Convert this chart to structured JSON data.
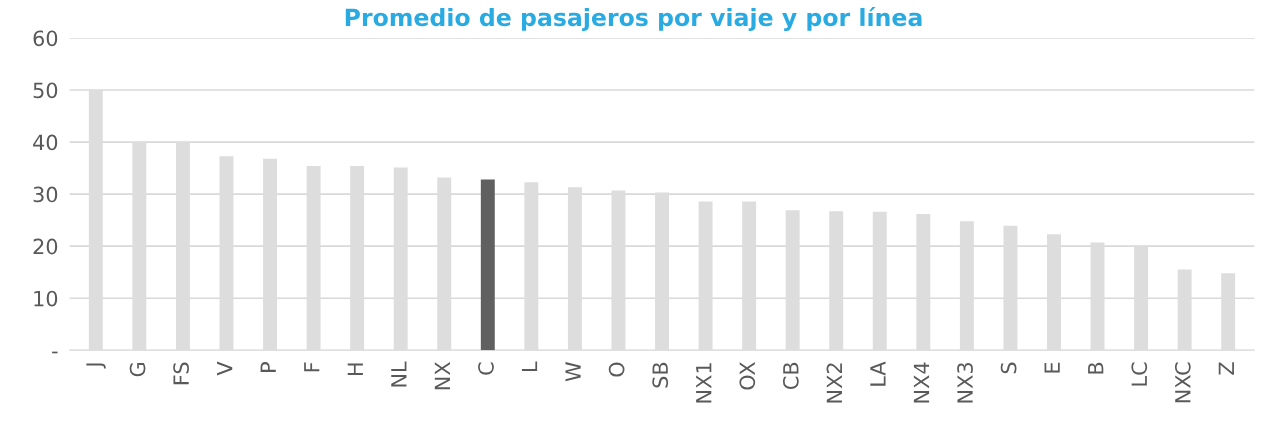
{
  "chart_data": {
    "type": "bar",
    "title": "Promedio de pasajeros por viaje y por línea",
    "categories": [
      "J",
      "G",
      "FS",
      "V",
      "P",
      "F",
      "H",
      "NL",
      "NX",
      "C",
      "L",
      "W",
      "O",
      "SB",
      "NX1",
      "OX",
      "CB",
      "NX2",
      "LA",
      "NX4",
      "NX3",
      "S",
      "E",
      "B",
      "LC",
      "NXC",
      "Z"
    ],
    "values": [
      50,
      40,
      40,
      37.3,
      36.8,
      35.4,
      35.4,
      35.1,
      33.2,
      32.8,
      32.3,
      31.3,
      30.7,
      30.3,
      28.6,
      28.6,
      26.9,
      26.7,
      26.6,
      26.2,
      24.8,
      23.9,
      22.3,
      20.7,
      20.0,
      15.5,
      14.8
    ],
    "colors": [
      "#dddddd",
      "#dddddd",
      "#dddddd",
      "#dddddd",
      "#dddddd",
      "#dddddd",
      "#dddddd",
      "#dddddd",
      "#dddddd",
      "#606060",
      "#dddddd",
      "#dddddd",
      "#dddddd",
      "#dddddd",
      "#dddddd",
      "#dddddd",
      "#dddddd",
      "#dddddd",
      "#dddddd",
      "#dddddd",
      "#dddddd",
      "#dddddd",
      "#dddddd",
      "#dddddd",
      "#dddddd",
      "#dddddd",
      "#dddddd"
    ],
    "ylim": [
      0,
      60
    ],
    "yticks": [
      {
        "value": 0,
        "label": "-"
      },
      10,
      20,
      30,
      40,
      50,
      60
    ],
    "grid": "y"
  }
}
